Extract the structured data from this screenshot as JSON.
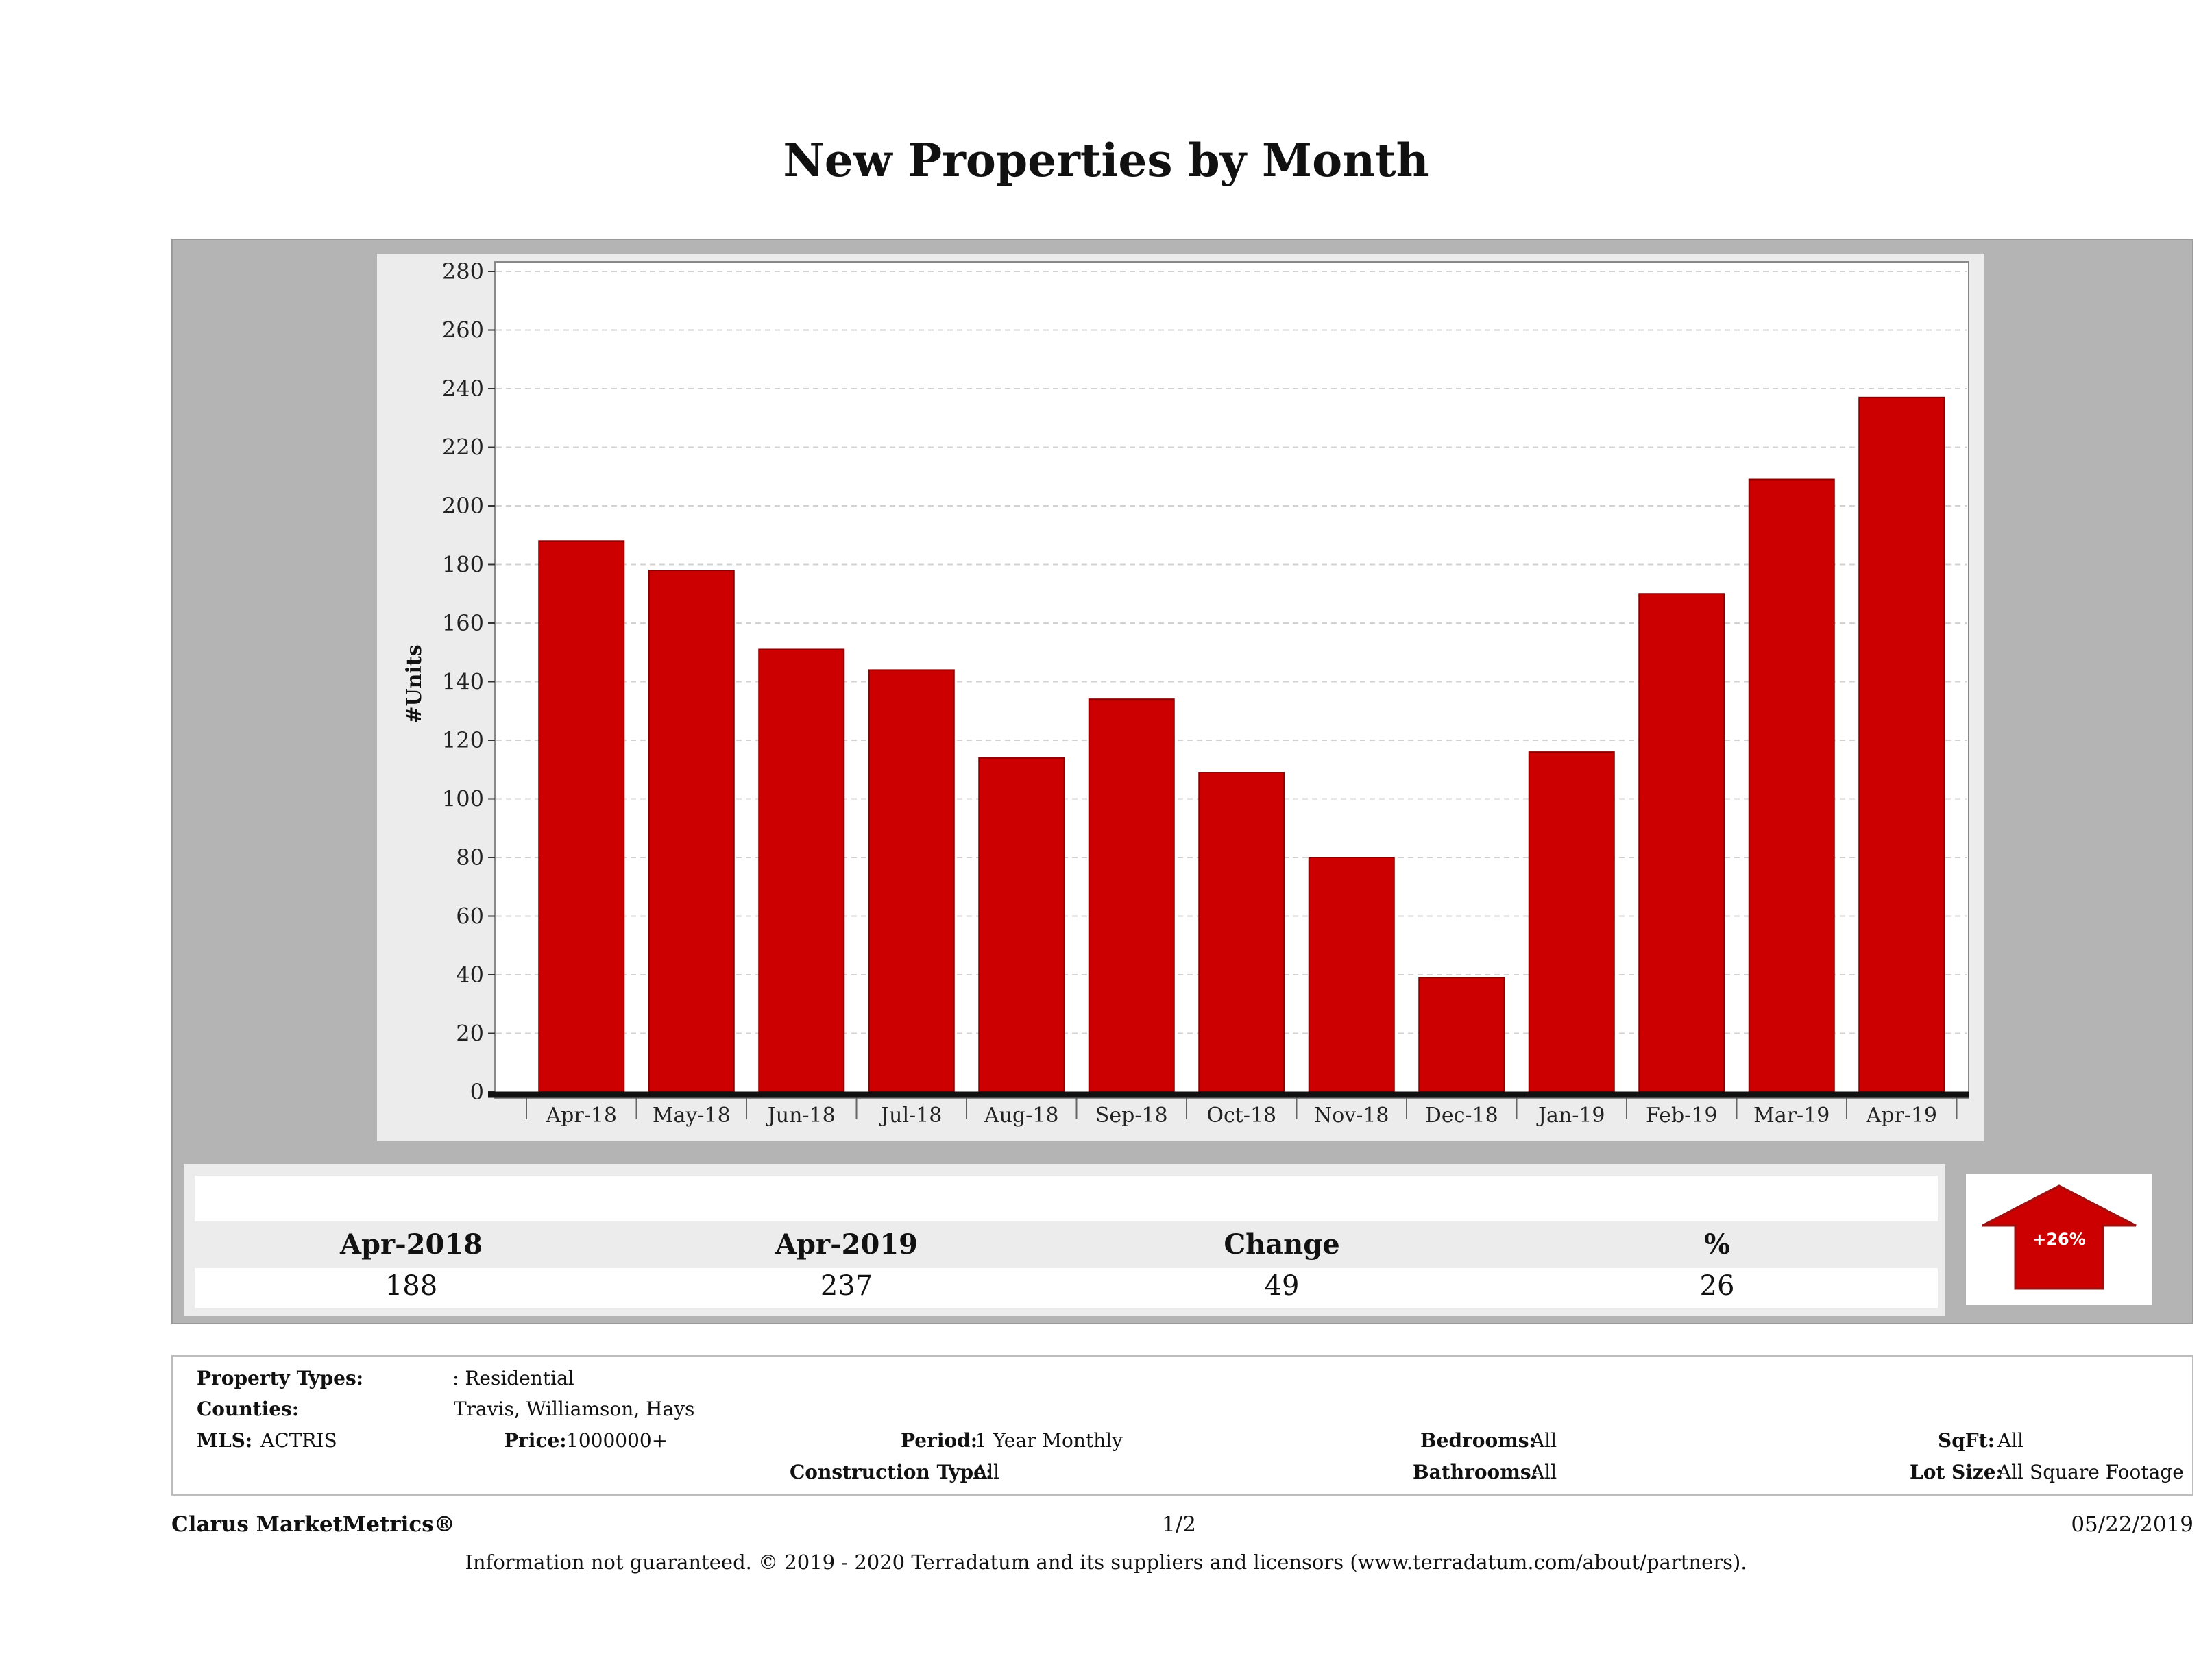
{
  "title": "New Properties by Month",
  "chart_data": {
    "type": "bar",
    "title": "New Properties by Month",
    "ylabel": "#Units",
    "xlabel": "",
    "ylim": [
      0,
      280
    ],
    "yticks": [
      0,
      20,
      40,
      60,
      80,
      100,
      120,
      140,
      160,
      180,
      200,
      220,
      240,
      260,
      280
    ],
    "categories": [
      "Apr-18",
      "May-18",
      "Jun-18",
      "Jul-18",
      "Aug-18",
      "Sep-18",
      "Oct-18",
      "Nov-18",
      "Dec-18",
      "Jan-19",
      "Feb-19",
      "Mar-19",
      "Apr-19"
    ],
    "values": [
      188,
      178,
      151,
      144,
      114,
      134,
      109,
      80,
      39,
      116,
      170,
      209,
      237
    ],
    "grid": true,
    "bar_color": "#cc0000"
  },
  "summary": {
    "col1_label": "Apr-2018",
    "col2_label": "Apr-2019",
    "col3_label": "Change",
    "col4_label": "%",
    "col1_value": "188",
    "col2_value": "237",
    "col3_value": "49",
    "col4_value": "26",
    "badge": "+26%",
    "badge_color": "#cc0000"
  },
  "info": {
    "property_types_label": "Property Types:",
    "property_types_value": ": Residential",
    "counties_label": "Counties:",
    "counties_value": "Travis, Williamson, Hays",
    "mls_label": "MLS:",
    "mls_value": "ACTRIS",
    "price_label": "Price:",
    "price_value": "1000000+",
    "period_label": "Period:",
    "period_value": "1 Year Monthly",
    "construction_label": "Construction Type:",
    "construction_value": "All",
    "bedrooms_label": "Bedrooms:",
    "bedrooms_value": "All",
    "bathrooms_label": "Bathrooms:",
    "bathrooms_value": "All",
    "sqft_label": "SqFt:",
    "sqft_value": "All",
    "lotsize_label": "Lot Size:",
    "lotsize_value": "All Square Footage"
  },
  "footer": {
    "brand": "Clarus MarketMetrics®",
    "page": "1/2",
    "date": "05/22/2019",
    "disclaimer": "Information not guaranteed. © 2019 - 2020 Terradatum and its suppliers and licensors (www.terradatum.com/about/partners)."
  }
}
